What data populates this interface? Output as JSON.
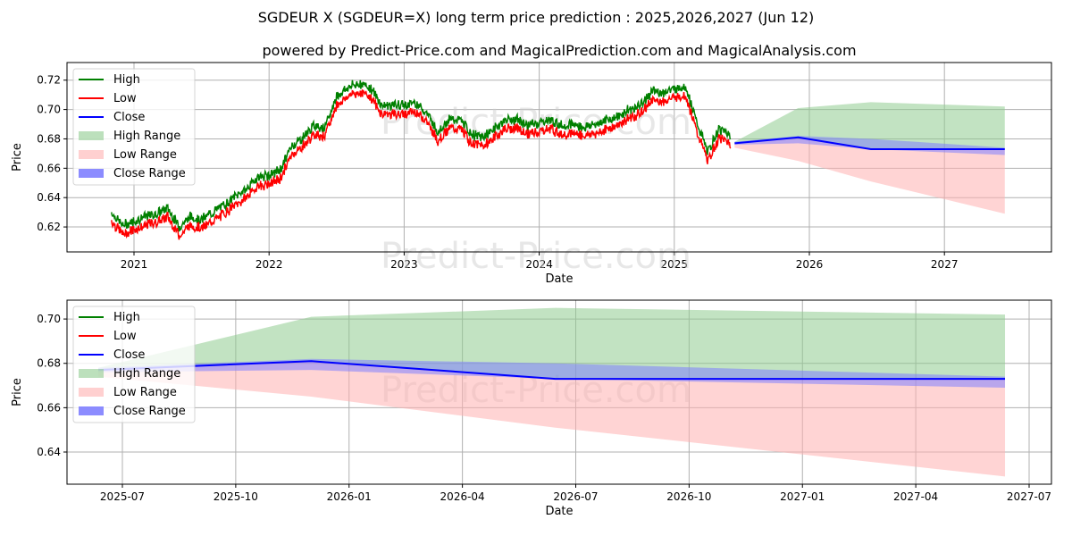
{
  "title": "SGDEUR X (SGDEUR=X) long term price prediction : 2025,2026,2027 (Jun 12)",
  "subtitle": "powered by Predict-Price.com and MagicalPrediction.com and MagicalAnalysis.com",
  "watermark": "Predict-Price.com",
  "colors": {
    "high": "#008000",
    "low": "#ff0000",
    "close": "#0000ff",
    "high_range": "#8fcc8f",
    "low_range": "#ffb0b0",
    "close_range": "#7f7fff"
  },
  "chart_data": [
    {
      "type": "line",
      "title": "",
      "xlabel": "Date",
      "ylabel": "Price",
      "ylim": [
        0.603,
        0.732
      ],
      "xlim": [
        2020.5,
        2027.8
      ],
      "xticks": [
        "2021",
        "2022",
        "2023",
        "2024",
        "2025",
        "2026",
        "2027"
      ],
      "yticks": [
        "0.62",
        "0.64",
        "0.66",
        "0.68",
        "0.70",
        "0.72"
      ],
      "legend": [
        "High",
        "Low",
        "Close",
        "High Range",
        "Low Range",
        "Close Range"
      ],
      "legend_position": "top-left",
      "grid": true,
      "history_monthly": {
        "start": "2020-11",
        "close": [
          0.627,
          0.618,
          0.621,
          0.624,
          0.626,
          0.63,
          0.617,
          0.624,
          0.622,
          0.627,
          0.632,
          0.638,
          0.643,
          0.651,
          0.652,
          0.656,
          0.672,
          0.678,
          0.686,
          0.685,
          0.706,
          0.712,
          0.715,
          0.712,
          0.7,
          0.7,
          0.7,
          0.702,
          0.695,
          0.682,
          0.69,
          0.69,
          0.68,
          0.678,
          0.684,
          0.69,
          0.69,
          0.686,
          0.688,
          0.69,
          0.686,
          0.687,
          0.685,
          0.687,
          0.69,
          0.692,
          0.697,
          0.7,
          0.709,
          0.709,
          0.711,
          0.713,
          0.688,
          0.668,
          0.684,
          0.68
        ]
      }
    },
    {
      "type": "area",
      "title": "",
      "xlabel": "Date",
      "ylabel": "Price",
      "ylim": [
        0.6255,
        0.7085
      ],
      "xlim": [
        "2025-05-15",
        "2027-07-20"
      ],
      "xticks": [
        "2025-07",
        "2025-10",
        "2026-01",
        "2026-04",
        "2026-07",
        "2026-10",
        "2027-01",
        "2027-04",
        "2027-07"
      ],
      "yticks": [
        "0.64",
        "0.66",
        "0.68",
        "0.70"
      ],
      "legend": [
        "High",
        "Low",
        "Close",
        "High Range",
        "Low Range",
        "Close Range"
      ],
      "legend_position": "top-left",
      "grid": true
    }
  ],
  "forecast": {
    "dates": [
      "2025-06-12",
      "2025-12-01",
      "2026-06-15",
      "2027-06-12"
    ],
    "close": [
      0.677,
      0.681,
      0.673,
      0.673
    ],
    "high_range_top": [
      0.678,
      0.701,
      0.705,
      0.702
    ],
    "low_range_bottom": [
      0.674,
      0.665,
      0.651,
      0.629
    ],
    "close_range_top": [
      0.678,
      0.682,
      0.68,
      0.674
    ],
    "close_range_bottom": [
      0.676,
      0.677,
      0.673,
      0.669
    ]
  }
}
